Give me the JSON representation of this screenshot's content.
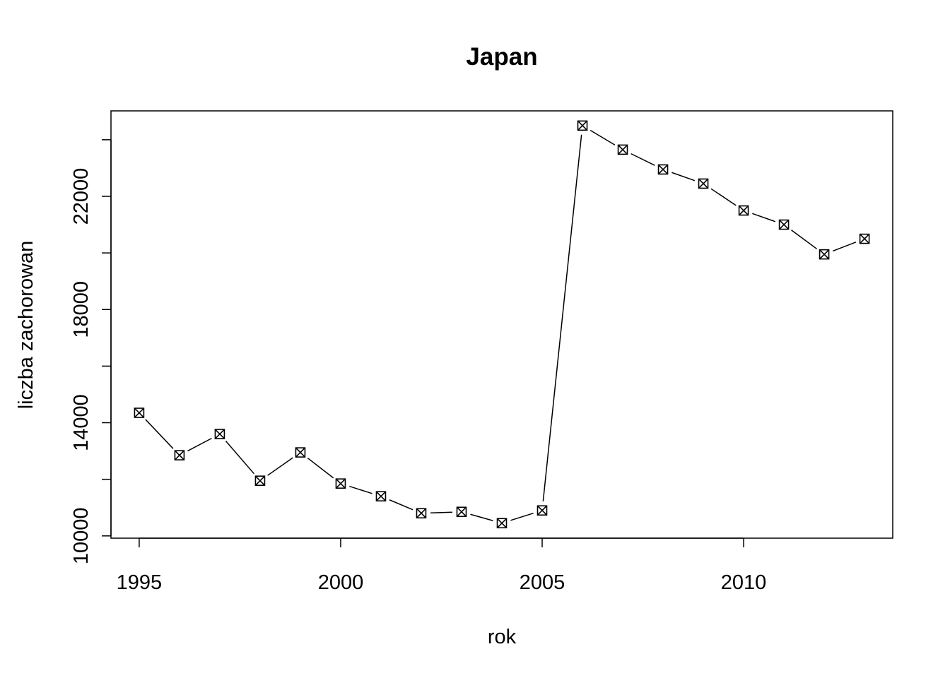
{
  "chart_data": {
    "type": "line",
    "title": "Japan",
    "xlabel": "rok",
    "ylabel": "liczba zachorowan",
    "xlim": [
      1994.3,
      2013.7
    ],
    "ylim": [
      9920,
      25020
    ],
    "x_ticks": [
      1995,
      2000,
      2005,
      2010
    ],
    "y_ticks": [
      10000,
      12000,
      14000,
      16000,
      18000,
      20000,
      22000,
      24000
    ],
    "y_tick_labels": [
      10000,
      14000,
      18000,
      22000
    ],
    "grid": false,
    "legend": "none",
    "marker": "boxed-x",
    "line_style": "segments with gaps at points (type b)",
    "line_color": "#000000",
    "series": [
      {
        "x": [
          1995,
          1996,
          1997,
          1998,
          1999,
          2000,
          2001,
          2002,
          2003,
          2004,
          2005,
          2006,
          2007,
          2008,
          2009,
          2010,
          2011,
          2012,
          2013
        ],
        "values": [
          14350,
          12850,
          13600,
          11950,
          12950,
          11850,
          11400,
          10800,
          10850,
          10450,
          10900,
          24500,
          23650,
          22950,
          22450,
          21500,
          21000,
          19950,
          20500
        ]
      }
    ]
  }
}
